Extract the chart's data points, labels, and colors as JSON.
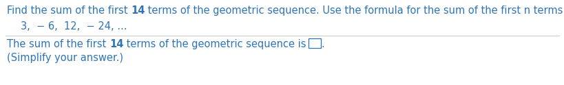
{
  "bg_color": "#ffffff",
  "text_color": "#2e74b5",
  "line1_a": "Find the sum of the first ",
  "line1_b": "14",
  "line1_c": " terms of the geometric sequence. Use the formula for the sum of the first n terms of a geometric sequence.",
  "line2": "3,  − 6,  12,  − 24, ...",
  "line3_a": "The sum of the first ",
  "line3_b": "14",
  "line3_c": " terms of the geometric sequence is",
  "line4": "(Simplify your answer.)",
  "font_size": 10.5,
  "fig_width": 8.2,
  "fig_height": 1.24,
  "dpi": 100
}
